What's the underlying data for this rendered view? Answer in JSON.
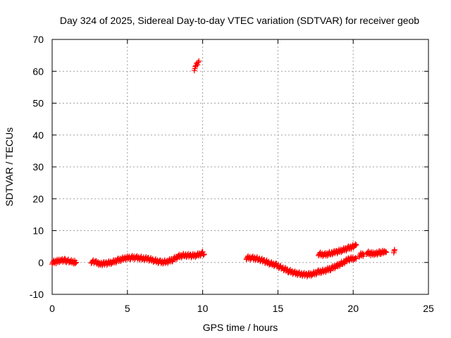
{
  "chart_data": {
    "type": "scatter",
    "title": "Day 324 of 2025, Sidereal Day-to-day VTEC variation (SDTVAR) for receiver geob",
    "xlabel": "GPS time / hours",
    "ylabel": "SDTVAR / TECUs",
    "xlim": [
      0,
      25
    ],
    "ylim": [
      -10,
      70
    ],
    "xticks": [
      0,
      5,
      10,
      15,
      20,
      25
    ],
    "yticks": [
      -10,
      0,
      10,
      20,
      30,
      40,
      50,
      60,
      70
    ],
    "xtick_labels": [
      "0",
      "5",
      "10",
      "15",
      "20",
      "25"
    ],
    "ytick_labels": [
      "-10",
      "0",
      "10",
      "20",
      "30",
      "40",
      "50",
      "60",
      "70"
    ],
    "grid": true,
    "marker": "+",
    "color": "#ff0000",
    "series": [
      {
        "name": "SDTVAR",
        "segments": [
          {
            "x": [
              0.0,
              0.3,
              0.6,
              0.9,
              1.2,
              1.5,
              1.6
            ],
            "y": [
              0.0,
              0.3,
              0.8,
              0.6,
              0.3,
              0.1,
              0.0
            ]
          },
          {
            "x": [
              2.6,
              2.9,
              3.2,
              3.6,
              4.0,
              4.4,
              4.8,
              5.2,
              5.6,
              6.0,
              6.4,
              6.8,
              7.2,
              7.6,
              8.0,
              8.4,
              8.8,
              9.2,
              9.6,
              10.0,
              10.1
            ],
            "y": [
              0.3,
              0.0,
              -0.4,
              -0.3,
              0.1,
              0.7,
              1.3,
              1.6,
              1.5,
              1.3,
              1.1,
              0.6,
              0.1,
              0.2,
              0.9,
              1.9,
              2.3,
              2.1,
              2.3,
              2.8,
              2.6
            ]
          },
          {
            "x": [
              9.45,
              9.55,
              9.65,
              9.75
            ],
            "y": [
              60.8,
              61.6,
              62.4,
              63.2
            ]
          },
          {
            "x": [
              12.9,
              13.3,
              13.7,
              14.1,
              14.5,
              14.9,
              15.3,
              15.7,
              16.1,
              16.5,
              16.9,
              17.3,
              17.7,
              18.1,
              18.5,
              18.9,
              19.3,
              19.7,
              20.1,
              20.2
            ],
            "y": [
              1.5,
              1.4,
              1.1,
              0.4,
              -0.3,
              -0.9,
              -1.8,
              -2.6,
              -3.3,
              -3.6,
              -3.9,
              -3.6,
              -3.0,
              -2.6,
              -1.9,
              -1.1,
              -0.1,
              1.0,
              1.3,
              1.2
            ]
          },
          {
            "x": [
              17.7,
              18.1,
              18.5,
              18.9,
              19.3,
              19.7,
              20.1,
              20.2
            ],
            "y": [
              2.7,
              2.4,
              2.9,
              3.3,
              3.9,
              4.5,
              5.2,
              5.5
            ]
          },
          {
            "x": [
              20.4,
              20.7
            ],
            "y": [
              2.3,
              2.6
            ]
          },
          {
            "x": [
              20.9,
              21.2,
              21.5,
              21.8,
              22.1,
              22.2
            ],
            "y": [
              3.1,
              2.7,
              2.9,
              3.1,
              3.3,
              3.2
            ]
          },
          {
            "x": [
              22.7,
              22.75
            ],
            "y": [
              3.6,
              4.0
            ]
          }
        ]
      }
    ]
  }
}
